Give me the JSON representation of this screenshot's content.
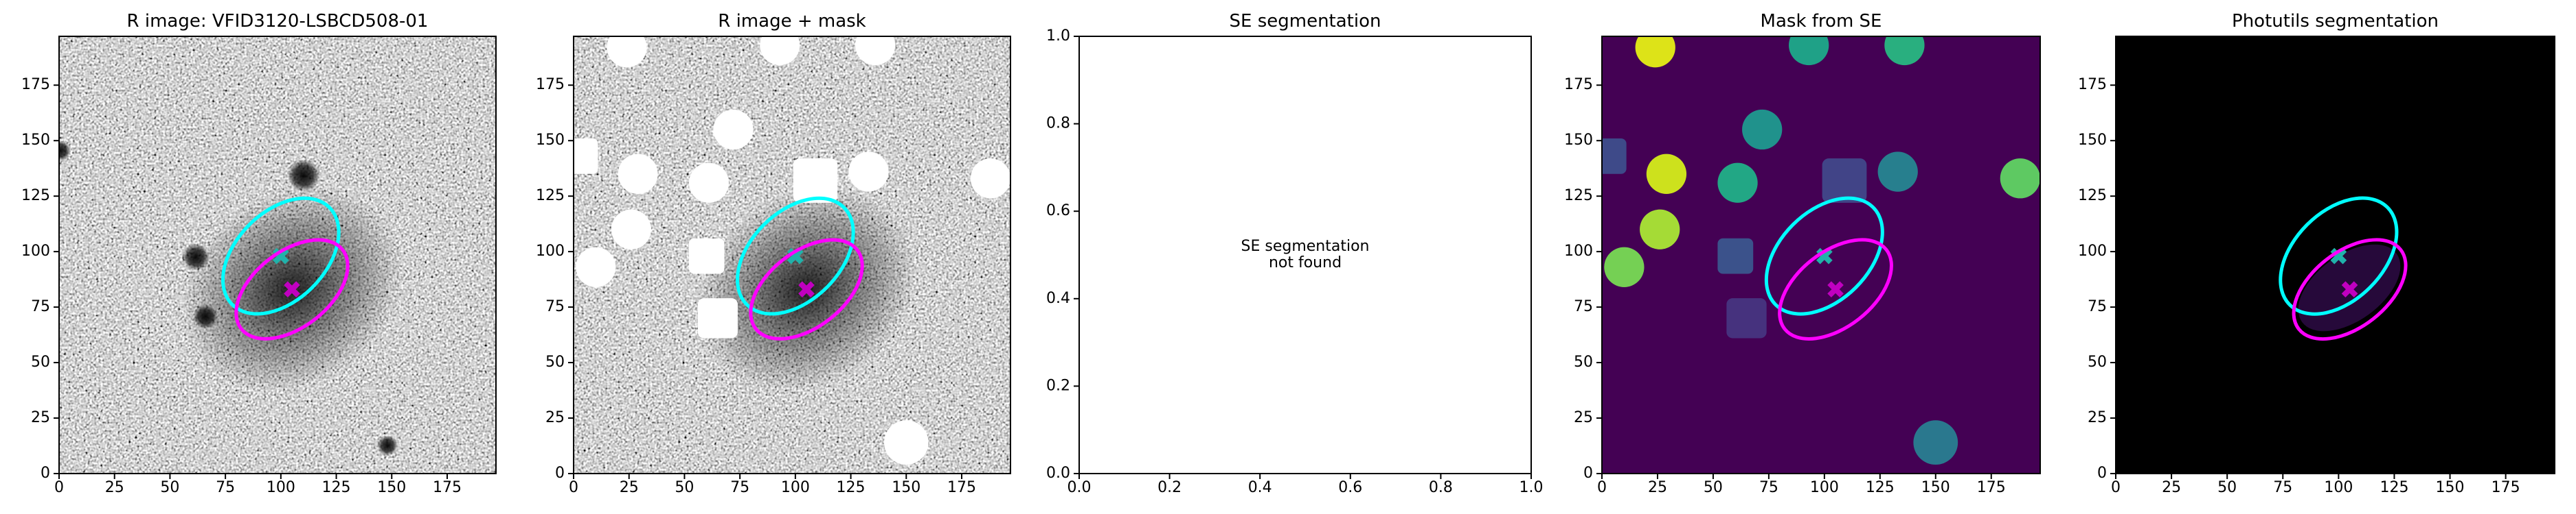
{
  "chart_data": [
    {
      "type": "image",
      "title": "R image: VFID3120-LSBCD508-01",
      "xlim": [
        0,
        197
      ],
      "ylim": [
        0,
        197
      ],
      "xticks": [
        0,
        25,
        50,
        75,
        100,
        125,
        150,
        175
      ],
      "yticks": [
        0,
        25,
        50,
        75,
        100,
        125,
        150,
        175
      ],
      "ellipses": [
        {
          "x": 100,
          "y": 98,
          "a": 31,
          "b": 20,
          "angle": 45,
          "color": "#00ffff",
          "marker_color": "#20b2aa"
        },
        {
          "x": 105,
          "y": 83,
          "a": 29,
          "b": 17,
          "angle": 38,
          "color": "#ff00ff",
          "marker_color": "#c000c0"
        }
      ]
    },
    {
      "type": "image",
      "title": "R image + mask",
      "xlim": [
        0,
        197
      ],
      "ylim": [
        0,
        197
      ],
      "xticks": [
        0,
        25,
        50,
        75,
        100,
        125,
        150,
        175
      ],
      "yticks": [
        0,
        25,
        50,
        75,
        100,
        125,
        150,
        175
      ],
      "mask_color": "#ffffff",
      "masks": [
        {
          "x": 24,
          "y": 192,
          "r": 9,
          "shape": "circle"
        },
        {
          "x": 93,
          "y": 193,
          "r": 9,
          "shape": "circle"
        },
        {
          "x": 136,
          "y": 193,
          "r": 9,
          "shape": "circle"
        },
        {
          "x": 3,
          "y": 143,
          "r": 8,
          "shape": "square"
        },
        {
          "x": 72,
          "y": 155,
          "r": 9,
          "shape": "circle"
        },
        {
          "x": 29,
          "y": 135,
          "r": 9,
          "shape": "circle"
        },
        {
          "x": 61,
          "y": 131,
          "r": 9,
          "shape": "circle"
        },
        {
          "x": 109,
          "y": 132,
          "r": 10,
          "shape": "square"
        },
        {
          "x": 133,
          "y": 136,
          "r": 9,
          "shape": "circle"
        },
        {
          "x": 188,
          "y": 133,
          "r": 9,
          "shape": "circle"
        },
        {
          "x": 26,
          "y": 110,
          "r": 9,
          "shape": "circle"
        },
        {
          "x": 10,
          "y": 93,
          "r": 9,
          "shape": "circle"
        },
        {
          "x": 60,
          "y": 98,
          "r": 8,
          "shape": "square"
        },
        {
          "x": 65,
          "y": 70,
          "r": 9,
          "shape": "square"
        },
        {
          "x": 150,
          "y": 14,
          "r": 10,
          "shape": "circle"
        }
      ],
      "ellipses": [
        {
          "x": 100,
          "y": 98,
          "a": 31,
          "b": 20,
          "angle": 45,
          "color": "#00ffff",
          "marker_color": "#20b2aa"
        },
        {
          "x": 105,
          "y": 83,
          "a": 29,
          "b": 17,
          "angle": 38,
          "color": "#ff00ff",
          "marker_color": "#c000c0"
        }
      ]
    },
    {
      "type": "empty",
      "title": "SE segmentation",
      "xlim": [
        0,
        1
      ],
      "ylim": [
        0,
        1
      ],
      "xticks": [
        {
          "value": 0,
          "label": "0.0"
        },
        {
          "value": 0.2,
          "label": "0.2"
        },
        {
          "value": 0.4,
          "label": "0.4"
        },
        {
          "value": 0.6,
          "label": "0.6"
        },
        {
          "value": 0.8,
          "label": "0.8"
        },
        {
          "value": 1,
          "label": "1.0"
        }
      ],
      "yticks": [
        {
          "value": 0,
          "label": "0.0"
        },
        {
          "value": 0.2,
          "label": "0.2"
        },
        {
          "value": 0.4,
          "label": "0.4"
        },
        {
          "value": 0.6,
          "label": "0.6"
        },
        {
          "value": 0.8,
          "label": "0.8"
        },
        {
          "value": 1,
          "label": "1.0"
        }
      ],
      "annotation": [
        "SE segmentation",
        "not found"
      ]
    },
    {
      "type": "image",
      "title": "Mask from SE",
      "xlim": [
        0,
        197
      ],
      "ylim": [
        0,
        197
      ],
      "xticks": [
        0,
        25,
        50,
        75,
        100,
        125,
        150,
        175
      ],
      "yticks": [
        0,
        25,
        50,
        75,
        100,
        125,
        150,
        175
      ],
      "masks": [
        {
          "x": 24,
          "y": 192,
          "r": 9,
          "shape": "circle",
          "color": "#dde318"
        },
        {
          "x": 93,
          "y": 193,
          "r": 9,
          "shape": "circle",
          "color": "#1fa187"
        },
        {
          "x": 136,
          "y": 193,
          "r": 9,
          "shape": "circle",
          "color": "#29af7f"
        },
        {
          "x": 3,
          "y": 143,
          "r": 8,
          "shape": "square",
          "color": "#3e4a89"
        },
        {
          "x": 72,
          "y": 155,
          "r": 9,
          "shape": "circle",
          "color": "#20928c"
        },
        {
          "x": 29,
          "y": 135,
          "r": 9,
          "shape": "circle",
          "color": "#cde11d"
        },
        {
          "x": 61,
          "y": 131,
          "r": 9,
          "shape": "circle",
          "color": "#22a785"
        },
        {
          "x": 109,
          "y": 132,
          "r": 10,
          "shape": "square",
          "color": "#414487"
        },
        {
          "x": 133,
          "y": 136,
          "r": 9,
          "shape": "circle",
          "color": "#277f8e"
        },
        {
          "x": 188,
          "y": 133,
          "r": 9,
          "shape": "circle",
          "color": "#5ec962"
        },
        {
          "x": 26,
          "y": 110,
          "r": 9,
          "shape": "circle",
          "color": "#a5db36"
        },
        {
          "x": 10,
          "y": 93,
          "r": 9,
          "shape": "circle",
          "color": "#75d054"
        },
        {
          "x": 60,
          "y": 98,
          "r": 8,
          "shape": "square",
          "color": "#3b528b"
        },
        {
          "x": 65,
          "y": 70,
          "r": 9,
          "shape": "square",
          "color": "#46327e"
        },
        {
          "x": 150,
          "y": 14,
          "r": 10,
          "shape": "circle",
          "color": "#2a788e"
        }
      ],
      "ellipses": [
        {
          "x": 100,
          "y": 98,
          "a": 31,
          "b": 20,
          "angle": 45,
          "color": "#00ffff",
          "marker_color": "#20b2aa"
        },
        {
          "x": 105,
          "y": 83,
          "a": 29,
          "b": 17,
          "angle": 38,
          "color": "#ff00ff",
          "marker_color": "#c000c0"
        }
      ]
    },
    {
      "type": "image",
      "title": "Photutils segmentation",
      "xlim": [
        0,
        197
      ],
      "ylim": [
        0,
        197
      ],
      "xticks": [
        0,
        25,
        50,
        75,
        100,
        125,
        150,
        175
      ],
      "yticks": [
        0,
        25,
        50,
        75,
        100,
        125,
        150,
        175
      ],
      "ellipses": [
        {
          "x": 100,
          "y": 98,
          "a": 31,
          "b": 20,
          "angle": 45,
          "color": "#00ffff",
          "marker_color": "#20b2aa"
        },
        {
          "x": 105,
          "y": 83,
          "a": 29,
          "b": 17,
          "angle": 38,
          "color": "#ff00ff",
          "marker_color": "#c000c0"
        }
      ]
    }
  ]
}
